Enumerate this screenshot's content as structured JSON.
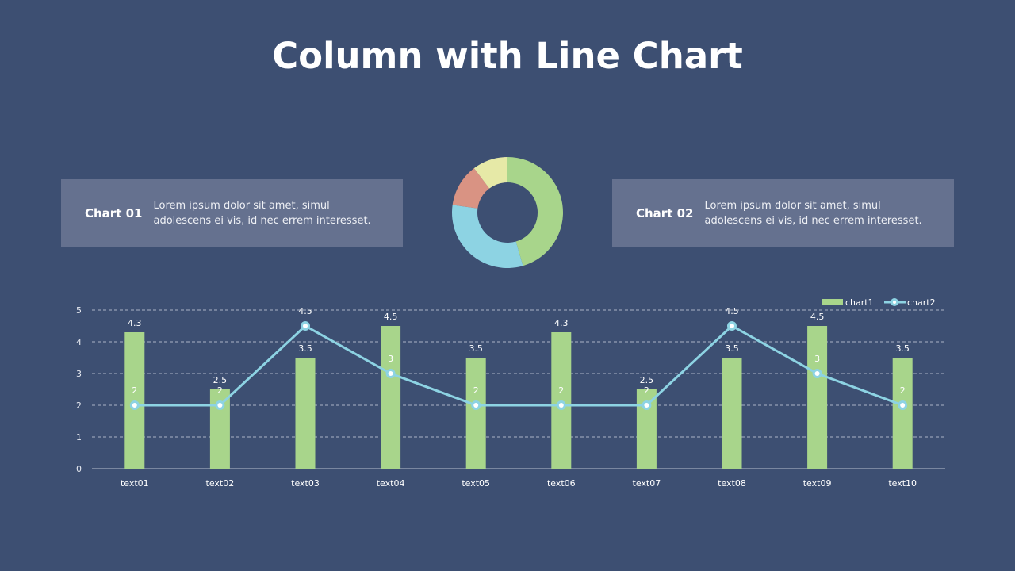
{
  "page": {
    "title": "Column with Line Chart"
  },
  "cards": [
    {
      "label": "Chart 01",
      "text_line1": "Lorem ipsum dolor sit amet, simul",
      "text_line2": "adolescens ei vis, id nec errem  interesset."
    },
    {
      "label": "Chart 02",
      "text_line1": "Lorem ipsum dolor sit amet, simul",
      "text_line2": "adolescens ei vis, id nec errem  interesset."
    }
  ],
  "colors": {
    "background": "#3d4f72",
    "card": "#65718f",
    "bar": "#a8d58b",
    "line": "#8dd3e3",
    "donut_green": "#a8d58b",
    "donut_blue": "#8dd3e3",
    "donut_red": "#d99383",
    "donut_yellow": "#e6e9a7"
  },
  "chart_data": [
    {
      "type": "pie",
      "title": "",
      "donut": true,
      "categories": [
        "green",
        "blue",
        "red",
        "yellow"
      ],
      "values": [
        45.5,
        31.7,
        12.5,
        10.3
      ],
      "colors": [
        "#a8d58b",
        "#8dd3e3",
        "#d99383",
        "#e6e9a7"
      ]
    },
    {
      "type": "bar",
      "title": "",
      "xlabel": "",
      "ylabel": "",
      "ylim": [
        0,
        5
      ],
      "yticks": [
        0,
        1,
        2,
        3,
        4,
        5
      ],
      "grid": true,
      "legend_position": "top-right",
      "categories": [
        "text01",
        "text02",
        "text03",
        "text04",
        "text05",
        "text06",
        "text07",
        "text08",
        "text09",
        "text10"
      ],
      "series": [
        {
          "name": "chart1",
          "type": "bar",
          "values": [
            4.3,
            2.5,
            3.5,
            4.5,
            3.5,
            4.3,
            2.5,
            3.5,
            4.5,
            3.5
          ]
        },
        {
          "name": "chart2",
          "type": "line",
          "values": [
            2,
            2,
            4.5,
            3,
            2,
            2,
            2,
            4.5,
            3,
            2
          ]
        }
      ]
    }
  ]
}
